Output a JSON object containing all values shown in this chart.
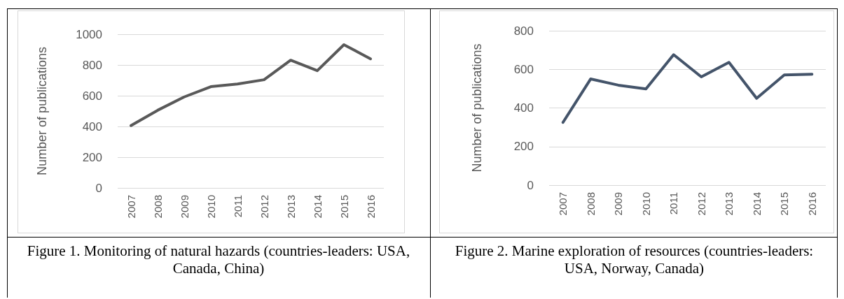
{
  "chart_data": [
    {
      "type": "line",
      "ylabel": "Number of publications",
      "annotations": [
        "Figure 1. Monitoring of natural hazards (countries-leaders: USA, Canada, China)"
      ],
      "categories": [
        "2007",
        "2008",
        "2009",
        "2010",
        "2011",
        "2012",
        "2013",
        "2014",
        "2015",
        "2016"
      ],
      "series": [
        {
          "color": "#595959",
          "values": [
            406,
            505,
            592,
            659,
            676,
            704,
            831,
            763,
            932,
            840
          ]
        }
      ],
      "ylim": [
        0,
        1000
      ],
      "yticks": [
        0,
        200,
        400,
        600,
        800,
        1000
      ],
      "grid": "y",
      "marker": "none",
      "line_style": "solid"
    },
    {
      "type": "line",
      "ylabel": "Number of publications",
      "annotations": [
        "Figure 2. Marine exploration of resources (countries-leaders: USA, Norway, Canada)"
      ],
      "categories": [
        "2007",
        "2008",
        "2009",
        "2010",
        "2011",
        "2012",
        "2013",
        "2014",
        "2015",
        "2016"
      ],
      "series": [
        {
          "color": "#44546a",
          "values": [
            325,
            550,
            518,
            499,
            676,
            561,
            636,
            450,
            571,
            575
          ]
        }
      ],
      "ylim": [
        0,
        800
      ],
      "yticks": [
        0,
        200,
        400,
        600,
        800
      ],
      "grid": "y",
      "marker": "none",
      "line_style": "solid"
    }
  ]
}
